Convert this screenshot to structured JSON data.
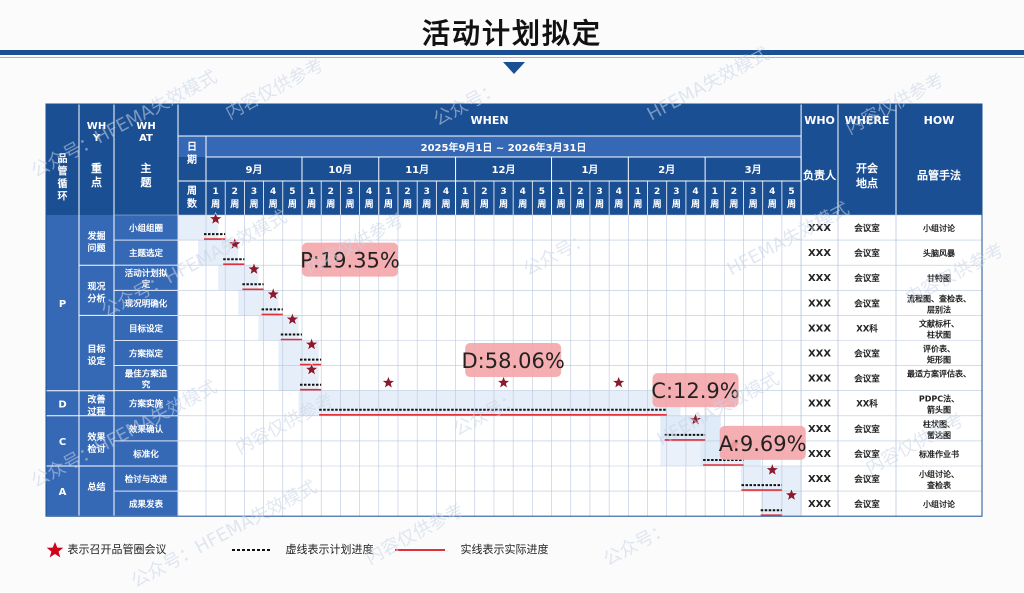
{
  "title": "活动计划拟定",
  "watermark": [
    "公众号：HFEMA失效模式",
    "内容仅供参考",
    "公众号：",
    "HFEMA失效模式",
    "内容仅供参考"
  ],
  "header": {
    "col1": "品管循环",
    "why": "WHY",
    "focus": "重点",
    "what": "WHAT",
    "topic": "主题",
    "when": "WHEN",
    "date_label": "日期",
    "weeks_label": "周数",
    "date_range": "2025年9月1日 ~ 2026年3月31日",
    "who": "WHO",
    "who_sub": "负责人",
    "where": "WHERE",
    "where_sub": "开会地点",
    "how": "HOW",
    "how_sub": "品管手法"
  },
  "months": [
    {
      "label": "9月",
      "weeks": [
        "1周",
        "2周",
        "3周",
        "4周",
        "5周"
      ]
    },
    {
      "label": "10月",
      "weeks": [
        "1周",
        "2周",
        "3周",
        "4周"
      ]
    },
    {
      "label": "11月",
      "weeks": [
        "1周",
        "2周",
        "3周",
        "4周"
      ]
    },
    {
      "label": "12月",
      "weeks": [
        "1周",
        "2周",
        "3周",
        "4周",
        "5周"
      ]
    },
    {
      "label": "1月",
      "weeks": [
        "1周",
        "2周",
        "3周",
        "4周"
      ]
    },
    {
      "label": "2月",
      "weeks": [
        "1周",
        "2周",
        "3周",
        "4周"
      ]
    },
    {
      "label": "3月",
      "weeks": [
        "1周",
        "2周",
        "3周",
        "4周",
        "5周"
      ]
    }
  ],
  "phases": [
    {
      "code": "P",
      "rows": [
        0,
        6
      ]
    },
    {
      "code": "D",
      "rows": [
        7,
        7
      ]
    },
    {
      "code": "C",
      "rows": [
        8,
        9
      ]
    },
    {
      "code": "A",
      "rows": [
        10,
        11
      ]
    }
  ],
  "focus_groups": [
    {
      "label": "发掘问题",
      "rows": [
        0,
        1
      ]
    },
    {
      "label": "现况分析",
      "rows": [
        2,
        3
      ]
    },
    {
      "label": "目标设定",
      "rows": [
        4,
        6
      ]
    },
    {
      "label": "改善过程",
      "rows": [
        7,
        7
      ]
    },
    {
      "label": "效果检讨",
      "rows": [
        8,
        9
      ]
    },
    {
      "label": "总结",
      "rows": [
        10,
        11
      ]
    }
  ],
  "rows": [
    {
      "topic": "小组组圈",
      "who": "XXX",
      "where": "会议室",
      "how": "小组讨论"
    },
    {
      "topic": "主题选定",
      "who": "XXX",
      "where": "会议室",
      "how": "头脑风暴"
    },
    {
      "topic": "活动计划拟定",
      "who": "XXX",
      "where": "会议室",
      "how": "甘特图"
    },
    {
      "topic": "现况明确化",
      "who": "XXX",
      "where": "会议室",
      "how": "流程图、查检表、层别法"
    },
    {
      "topic": "目标设定",
      "who": "XXX",
      "where": "XX科",
      "how": "文献标杆、柱状图"
    },
    {
      "topic": "方案拟定",
      "who": "XXX",
      "where": "会议室",
      "how": "评价表、矩形图"
    },
    {
      "topic": "最佳方案追究",
      "who": "XXX",
      "where": "会议室",
      "how": "最适方案评估表"
    },
    {
      "topic": "方案实施",
      "who": "XXX",
      "where": "XX科",
      "how": "PDPC法、箭头图"
    },
    {
      "topic": "效果确认",
      "who": "XXX",
      "where": "会议室",
      "how": "柱状图、雷达图"
    },
    {
      "topic": "标准化",
      "who": "XXX",
      "where": "会议室",
      "how": "标准作业书"
    },
    {
      "topic": "检讨与改进",
      "who": "XXX",
      "where": "会议室",
      "how": "小组讨论、查检表"
    },
    {
      "topic": "成果发表",
      "who": "XXX",
      "where": "会议室",
      "how": "小组讨论"
    }
  ],
  "chart_data": {
    "type": "gantt",
    "x_unit": "week index (0 = 9月第1周, 30 = 3月第5周)",
    "tasks": [
      {
        "row": 0,
        "plan": [
          0,
          1
        ],
        "actual": [
          0,
          1
        ],
        "meetings": [
          0
        ]
      },
      {
        "row": 1,
        "plan": [
          1,
          2
        ],
        "actual": [
          1,
          2
        ],
        "meetings": [
          1
        ]
      },
      {
        "row": 2,
        "plan": [
          2,
          3
        ],
        "actual": [
          2,
          3
        ],
        "meetings": [
          2
        ]
      },
      {
        "row": 3,
        "plan": [
          3,
          4
        ],
        "actual": [
          3,
          4
        ],
        "meetings": [
          3
        ]
      },
      {
        "row": 4,
        "plan": [
          4,
          5
        ],
        "actual": [
          4,
          5
        ],
        "meetings": [
          4
        ]
      },
      {
        "row": 5,
        "plan": [
          5,
          6
        ],
        "actual": [
          5,
          6
        ],
        "meetings": [
          5
        ]
      },
      {
        "row": 6,
        "plan": [
          5,
          6
        ],
        "actual": [
          5,
          6
        ],
        "meetings": [
          5
        ]
      },
      {
        "row": 7,
        "plan": [
          6,
          24
        ],
        "actual": [
          6,
          24
        ],
        "meetings": [
          9,
          15,
          21
        ]
      },
      {
        "row": 8,
        "plan": [
          24,
          26
        ],
        "actual": [
          24,
          26
        ],
        "meetings": [
          25
        ]
      },
      {
        "row": 9,
        "plan": [
          26,
          28
        ],
        "actual": [
          26,
          28
        ],
        "meetings": [
          27
        ]
      },
      {
        "row": 10,
        "plan": [
          28,
          30
        ],
        "actual": [
          28,
          30
        ],
        "meetings": [
          29
        ]
      },
      {
        "row": 11,
        "plan": [
          29,
          30
        ],
        "actual": [
          29,
          30
        ],
        "meetings": [
          30
        ]
      }
    ],
    "phase_percent": [
      {
        "label": "P:19.35%",
        "at_week": 7.5,
        "row": 1.3
      },
      {
        "label": "D:58.06%",
        "at_week": 16,
        "row": 5.3
      },
      {
        "label": "C:12.9%",
        "at_week": 25.5,
        "row": 6.5
      },
      {
        "label": "A:9.69%",
        "at_week": 29,
        "row": 8.6
      }
    ],
    "colors": {
      "header": "#1b4f93",
      "header_light": "#3568b5",
      "star": "#8b1a2e",
      "plan": "#111111",
      "actual": "#e0303a",
      "badge": "#f4a5a8",
      "highlight": "#dce8f6"
    }
  },
  "legend": {
    "star": "表示召开品管圈会议",
    "plan": "虚线表示计划进度",
    "actual": "实线表示实际进度"
  }
}
